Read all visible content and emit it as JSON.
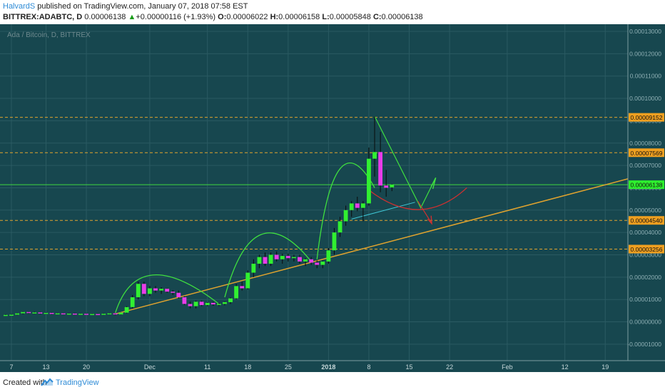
{
  "header": {
    "author": "HalvardS",
    "published_text": " published on TradingView.com, January 07, 2018 07:58 EST",
    "symbol": "BITTREX:ADABTC, D",
    "last": "0.00006138",
    "change": "+0.00000116 (+1.93%)",
    "o_label": "O:",
    "o": "0.00006022",
    "h_label": "H:",
    "h": "0.00006158",
    "l_label": "L:",
    "l": "0.00005848",
    "c_label": "C:",
    "c": "0.00006138"
  },
  "footer": {
    "created_with": "Created with",
    "brand": "TradingView"
  },
  "chart_data": {
    "type": "candlestick",
    "title": "Ada / Bitcoin, D, BITTREX",
    "y_ticks": [
      "0.00013000",
      "0.00012000",
      "0.00011000",
      "0.00010000",
      "0.00009000",
      "0.00008000",
      "0.00007000",
      "0.00006000",
      "0.00005000",
      "0.00004000",
      "0.00003000",
      "0.00002000",
      "0.00001000",
      "0.00000000",
      "-0.00001000"
    ],
    "y_tick_values": [
      13,
      12,
      11,
      10,
      9,
      8,
      7,
      6,
      5,
      4,
      3,
      2,
      1,
      0,
      -1
    ],
    "ylim": [
      -1.4,
      13.6
    ],
    "y_unit_scale": "values in units of 0.00001 BTC",
    "x_ticks": [
      "7",
      "13",
      "20",
      "Dec",
      "11",
      "18",
      "25",
      "2018",
      "8",
      "15",
      "22",
      "Feb",
      "12",
      "19"
    ],
    "x_tick_days": [
      0,
      6,
      13,
      24,
      34,
      41,
      48,
      55,
      62,
      69,
      76,
      86,
      96,
      103
    ],
    "x_day0": "2017-11-07",
    "x_range_days": [
      -1,
      104
    ],
    "price_levels": [
      {
        "label": "0.00009152",
        "value": 9.152,
        "style": "dashed",
        "color": "#e0a32e"
      },
      {
        "label": "0.00007569",
        "value": 7.569,
        "style": "dashed",
        "color": "#e0a32e"
      },
      {
        "label": "0.00006138",
        "value": 6.138,
        "style": "solid",
        "color": "#3fd63f"
      },
      {
        "label": "0.00004540",
        "value": 4.54,
        "style": "dashed",
        "color": "#e0a32e"
      },
      {
        "label": "0.00003256",
        "value": 3.256,
        "style": "dashed",
        "color": "#e0a32e"
      }
    ],
    "candles": [
      {
        "d": -1,
        "o": 0.3,
        "h": 0.34,
        "l": 0.27,
        "c": 0.31
      },
      {
        "d": 0,
        "o": 0.31,
        "h": 0.35,
        "l": 0.29,
        "c": 0.32
      },
      {
        "d": 1,
        "o": 0.32,
        "h": 0.4,
        "l": 0.3,
        "c": 0.38
      },
      {
        "d": 2,
        "o": 0.38,
        "h": 0.46,
        "l": 0.34,
        "c": 0.44
      },
      {
        "d": 3,
        "o": 0.44,
        "h": 0.46,
        "l": 0.36,
        "c": 0.4
      },
      {
        "d": 4,
        "o": 0.4,
        "h": 0.45,
        "l": 0.36,
        "c": 0.42
      },
      {
        "d": 5,
        "o": 0.42,
        "h": 0.44,
        "l": 0.35,
        "c": 0.38
      },
      {
        "d": 6,
        "o": 0.38,
        "h": 0.42,
        "l": 0.34,
        "c": 0.4
      },
      {
        "d": 7,
        "o": 0.4,
        "h": 0.42,
        "l": 0.33,
        "c": 0.36
      },
      {
        "d": 8,
        "o": 0.36,
        "h": 0.4,
        "l": 0.33,
        "c": 0.38
      },
      {
        "d": 9,
        "o": 0.38,
        "h": 0.4,
        "l": 0.32,
        "c": 0.35
      },
      {
        "d": 10,
        "o": 0.35,
        "h": 0.39,
        "l": 0.32,
        "c": 0.37
      },
      {
        "d": 11,
        "o": 0.37,
        "h": 0.39,
        "l": 0.31,
        "c": 0.34
      },
      {
        "d": 12,
        "o": 0.34,
        "h": 0.38,
        "l": 0.31,
        "c": 0.36
      },
      {
        "d": 13,
        "o": 0.36,
        "h": 0.38,
        "l": 0.31,
        "c": 0.33
      },
      {
        "d": 14,
        "o": 0.33,
        "h": 0.37,
        "l": 0.31,
        "c": 0.35
      },
      {
        "d": 15,
        "o": 0.35,
        "h": 0.37,
        "l": 0.3,
        "c": 0.32
      },
      {
        "d": 16,
        "o": 0.32,
        "h": 0.38,
        "l": 0.3,
        "c": 0.36
      },
      {
        "d": 17,
        "o": 0.36,
        "h": 0.4,
        "l": 0.32,
        "c": 0.38
      },
      {
        "d": 18,
        "o": 0.38,
        "h": 0.4,
        "l": 0.3,
        "c": 0.33
      },
      {
        "d": 19,
        "o": 0.33,
        "h": 0.42,
        "l": 0.31,
        "c": 0.41
      },
      {
        "d": 20,
        "o": 0.41,
        "h": 0.7,
        "l": 0.38,
        "c": 0.66
      },
      {
        "d": 21,
        "o": 0.66,
        "h": 1.2,
        "l": 0.6,
        "c": 1.1
      },
      {
        "d": 22,
        "o": 1.1,
        "h": 1.8,
        "l": 1.0,
        "c": 1.7
      },
      {
        "d": 23,
        "o": 1.7,
        "h": 1.8,
        "l": 1.15,
        "c": 1.25
      },
      {
        "d": 24,
        "o": 1.25,
        "h": 1.6,
        "l": 1.15,
        "c": 1.5
      },
      {
        "d": 25,
        "o": 1.5,
        "h": 1.6,
        "l": 1.3,
        "c": 1.4
      },
      {
        "d": 26,
        "o": 1.4,
        "h": 1.55,
        "l": 1.25,
        "c": 1.48
      },
      {
        "d": 27,
        "o": 1.48,
        "h": 1.5,
        "l": 1.3,
        "c": 1.35
      },
      {
        "d": 28,
        "o": 1.35,
        "h": 1.42,
        "l": 1.2,
        "c": 1.3
      },
      {
        "d": 29,
        "o": 1.3,
        "h": 1.4,
        "l": 1.05,
        "c": 1.1
      },
      {
        "d": 30,
        "o": 1.1,
        "h": 1.15,
        "l": 0.75,
        "c": 0.8
      },
      {
        "d": 31,
        "o": 0.8,
        "h": 0.9,
        "l": 0.6,
        "c": 0.7
      },
      {
        "d": 32,
        "o": 0.7,
        "h": 0.95,
        "l": 0.6,
        "c": 0.9
      },
      {
        "d": 33,
        "o": 0.9,
        "h": 0.95,
        "l": 0.7,
        "c": 0.75
      },
      {
        "d": 34,
        "o": 0.75,
        "h": 0.88,
        "l": 0.7,
        "c": 0.85
      },
      {
        "d": 35,
        "o": 0.85,
        "h": 0.9,
        "l": 0.72,
        "c": 0.78
      },
      {
        "d": 36,
        "o": 0.78,
        "h": 0.85,
        "l": 0.7,
        "c": 0.8
      },
      {
        "d": 37,
        "o": 0.8,
        "h": 0.9,
        "l": 0.74,
        "c": 0.88
      },
      {
        "d": 38,
        "o": 0.88,
        "h": 1.1,
        "l": 0.8,
        "c": 1.05
      },
      {
        "d": 39,
        "o": 1.05,
        "h": 1.7,
        "l": 1.0,
        "c": 1.6
      },
      {
        "d": 40,
        "o": 1.6,
        "h": 1.8,
        "l": 1.4,
        "c": 1.5
      },
      {
        "d": 41,
        "o": 1.5,
        "h": 2.3,
        "l": 1.45,
        "c": 2.2
      },
      {
        "d": 42,
        "o": 2.2,
        "h": 2.8,
        "l": 2.0,
        "c": 2.6
      },
      {
        "d": 43,
        "o": 2.6,
        "h": 3.0,
        "l": 2.4,
        "c": 2.9
      },
      {
        "d": 44,
        "o": 2.9,
        "h": 3.1,
        "l": 2.5,
        "c": 2.6
      },
      {
        "d": 45,
        "o": 2.6,
        "h": 3.1,
        "l": 2.5,
        "c": 3.0
      },
      {
        "d": 46,
        "o": 3.0,
        "h": 3.15,
        "l": 2.7,
        "c": 2.8
      },
      {
        "d": 47,
        "o": 2.8,
        "h": 3.05,
        "l": 2.6,
        "c": 2.95
      },
      {
        "d": 48,
        "o": 2.95,
        "h": 3.05,
        "l": 2.7,
        "c": 2.85
      },
      {
        "d": 49,
        "o": 2.85,
        "h": 3.0,
        "l": 2.7,
        "c": 2.9
      },
      {
        "d": 50,
        "o": 2.9,
        "h": 3.0,
        "l": 2.6,
        "c": 2.7
      },
      {
        "d": 51,
        "o": 2.7,
        "h": 2.85,
        "l": 2.5,
        "c": 2.8
      },
      {
        "d": 52,
        "o": 2.8,
        "h": 2.9,
        "l": 2.55,
        "c": 2.65
      },
      {
        "d": 53,
        "o": 2.65,
        "h": 2.75,
        "l": 2.4,
        "c": 2.55
      },
      {
        "d": 54,
        "o": 2.55,
        "h": 2.75,
        "l": 2.4,
        "c": 2.7
      },
      {
        "d": 55,
        "o": 2.7,
        "h": 3.3,
        "l": 2.6,
        "c": 3.2
      },
      {
        "d": 56,
        "o": 3.2,
        "h": 4.2,
        "l": 3.0,
        "c": 4.0
      },
      {
        "d": 57,
        "o": 4.0,
        "h": 4.7,
        "l": 3.8,
        "c": 4.5
      },
      {
        "d": 58,
        "o": 4.5,
        "h": 5.2,
        "l": 4.3,
        "c": 5.0
      },
      {
        "d": 59,
        "o": 5.0,
        "h": 5.4,
        "l": 4.7,
        "c": 5.3
      },
      {
        "d": 60,
        "o": 5.3,
        "h": 5.6,
        "l": 4.95,
        "c": 5.1
      },
      {
        "d": 61,
        "o": 5.1,
        "h": 5.4,
        "l": 4.5,
        "c": 5.3
      },
      {
        "d": 62,
        "o": 5.3,
        "h": 7.8,
        "l": 5.2,
        "c": 7.3
      },
      {
        "d": 63,
        "o": 7.3,
        "h": 9.2,
        "l": 6.5,
        "c": 7.6
      },
      {
        "d": 64,
        "o": 7.6,
        "h": 8.5,
        "l": 5.8,
        "c": 6.1
      },
      {
        "d": 65,
        "o": 6.1,
        "h": 6.8,
        "l": 5.6,
        "c": 6.0
      },
      {
        "d": 66,
        "o": 6.02,
        "h": 6.16,
        "l": 5.85,
        "c": 6.14
      }
    ]
  }
}
